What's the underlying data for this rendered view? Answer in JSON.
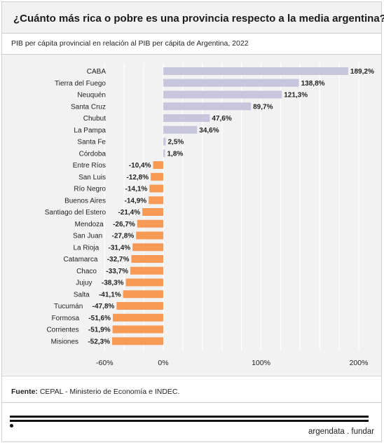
{
  "title": "¿Cuánto más rica o pobre es una provincia respecto a la media argentina?",
  "subtitle": "PIB per cápita provincial en relación al PIB per cápita de Argentina, 2022",
  "source": {
    "label": "Fuente:",
    "text": " CEPAL - Ministerio de Economía e INDEC."
  },
  "brand": "argendata . fundar",
  "colors": {
    "positive": "#c8c6dd",
    "negative": "#f79a55",
    "grid": "#ffffff",
    "background": "#f2f2f2"
  },
  "chart_data": {
    "type": "bar",
    "orientation": "horizontal",
    "categories": [
      "CABA",
      "Tierra del Fuego",
      "Neuquén",
      "Santa Cruz",
      "Chubut",
      "La Pampa",
      "Santa Fe",
      "Córdoba",
      "Entre Ríos",
      "San Luis",
      "Río Negro",
      "Buenos Aires",
      "Santiago del Estero",
      "Mendoza",
      "San Juan",
      "La Rioja",
      "Catamarca",
      "Chaco",
      "Jujuy",
      "Salta",
      "Tucumán",
      "Formosa",
      "Corrientes",
      "Misiones"
    ],
    "values": [
      189.2,
      138.8,
      121.3,
      89.7,
      47.6,
      34.6,
      2.5,
      1.8,
      -10.4,
      -12.8,
      -14.1,
      -14.9,
      -21.4,
      -26.7,
      -27.8,
      -31.4,
      -32.7,
      -33.7,
      -38.3,
      -41.1,
      -47.8,
      -51.6,
      -51.9,
      -52.3
    ],
    "labels": [
      "189,2%",
      "138,8%",
      "121,3%",
      "89,7%",
      "47,6%",
      "34,6%",
      "2,5%",
      "1,8%",
      "-10,4%",
      "-12,8%",
      "-14,1%",
      "-14,9%",
      "-21,4%",
      "-26,7%",
      "-27,8%",
      "-31,4%",
      "-32,7%",
      "-33,7%",
      "-38,3%",
      "-41,1%",
      "-47,8%",
      "-51,6%",
      "-51,9%",
      "-52,3%"
    ],
    "xticks": [
      -60,
      0,
      100,
      200
    ],
    "xtick_labels": [
      "-60%",
      "0%",
      "100%",
      "200%"
    ],
    "xlim": [
      -60,
      200
    ],
    "grid": true
  }
}
